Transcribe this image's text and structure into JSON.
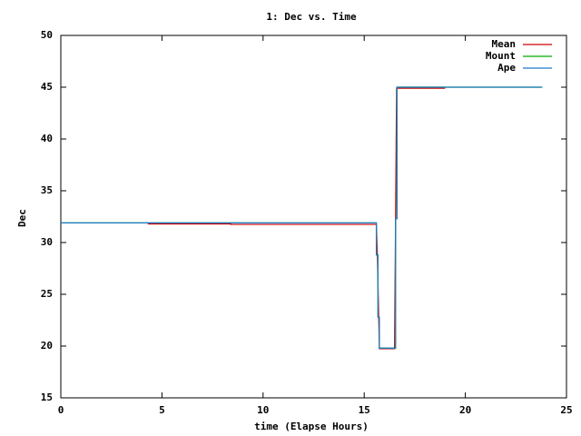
{
  "chart_data": {
    "type": "line",
    "title": "1: Dec vs. Time",
    "x_label": "time (Elapse Hours)",
    "y_label": "Dec",
    "xlim": [
      0,
      25
    ],
    "xticks": [
      0,
      5,
      10,
      15,
      20,
      25
    ],
    "ylim": [
      15,
      50
    ],
    "yticks": [
      15,
      20,
      25,
      30,
      35,
      40,
      45,
      50
    ],
    "legend": "upper right",
    "series": [
      {
        "name": "Mean",
        "color": "#cc0000",
        "x": [
          4.3,
          8.4,
          8.4,
          15.6,
          15.65,
          15.75,
          16.5,
          16.6,
          19.0
        ],
        "values": [
          31.8,
          31.8,
          31.75,
          31.75,
          28.8,
          19.75,
          19.75,
          44.9,
          44.9
        ]
      },
      {
        "name": "Mount",
        "color": "#00aa00",
        "x": [
          0,
          15.6,
          15.6,
          15.68,
          15.68,
          15.75,
          15.75,
          16.55,
          16.55,
          16.62,
          16.62,
          23.8
        ],
        "values": [
          31.9,
          31.9,
          28.8,
          28.8,
          22.8,
          22.8,
          19.8,
          19.8,
          32.3,
          32.3,
          45,
          45
        ]
      },
      {
        "name": "Ape",
        "color": "#1f78c8",
        "x": [
          0,
          15.6,
          15.6,
          15.68,
          15.68,
          15.75,
          15.75,
          16.55,
          16.55,
          16.62,
          16.62,
          23.8
        ],
        "values": [
          31.9,
          31.9,
          28.8,
          28.8,
          22.8,
          22.8,
          19.8,
          19.8,
          32.3,
          32.3,
          45,
          45
        ]
      }
    ]
  }
}
